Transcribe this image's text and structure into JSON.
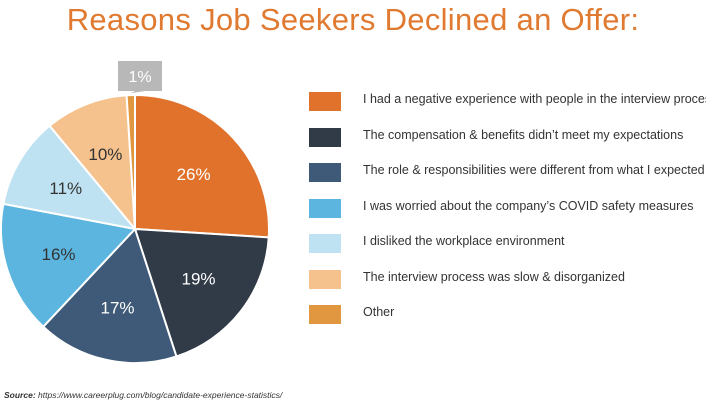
{
  "chart_data": {
    "type": "pie",
    "title": "Reasons Job Seekers Declined an Offer:",
    "slices": [
      {
        "label": "I had a negative experience with people in the interview process",
        "value": 26,
        "display": "26%",
        "color": "#e0722c",
        "text_color": "#ffffff"
      },
      {
        "label": "The compensation & benefits didn’t meet my expectations",
        "value": 19,
        "display": "19%",
        "color": "#313a47",
        "text_color": "#ffffff"
      },
      {
        "label": "The role & responsibilities were different from what I expected",
        "value": 17,
        "display": "17%",
        "color": "#3f5a78",
        "text_color": "#ffffff"
      },
      {
        "label": "I was worried about the company’s COVID safety measures",
        "value": 16,
        "display": "16%",
        "color": "#5bb5df",
        "text_color": "#333333"
      },
      {
        "label": "I disliked the workplace environment",
        "value": 11,
        "display": "11%",
        "color": "#bfe2f2",
        "text_color": "#333333"
      },
      {
        "label": "The interview process was slow & disorganized",
        "value": 10,
        "display": "10%",
        "color": "#f5c28e",
        "text_color": "#333333"
      },
      {
        "label": "Other",
        "value": 1,
        "display": "1%",
        "color": "#e0973f",
        "text_color": "#333333"
      }
    ],
    "callout_color": "#b8b8b8",
    "legend_position": "right"
  },
  "source": {
    "prefix": "Source:",
    "url": "https://www.careerplug.com/blog/candidate-experience-statistics/"
  }
}
